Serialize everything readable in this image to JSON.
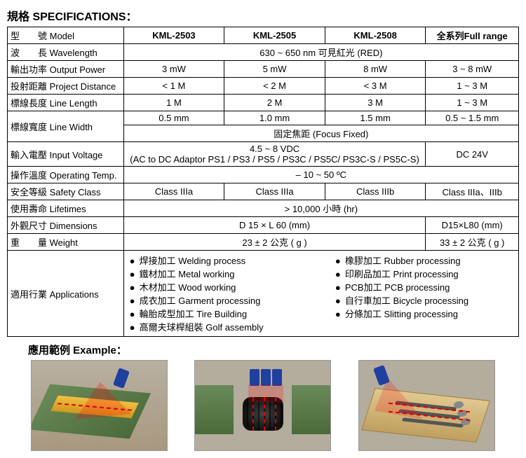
{
  "titles": {
    "spec": "規格 SPECIFICATIONS：",
    "example": "應用範例 Example："
  },
  "headers": {
    "model": "型　　號 Model",
    "full_range": "全系列Full range"
  },
  "models": [
    "KML-2503",
    "KML-2505",
    "KML-2508"
  ],
  "rows": {
    "wavelength": {
      "label": "波　　長 Wavelength",
      "merged123": "630 ~ 650 nm 可見紅光 (RED)"
    },
    "output_power": {
      "label": "輸出功率 Output Power",
      "v": [
        "3 mW",
        "5 mW",
        "8 mW"
      ],
      "full": "3 ~ 8 mW"
    },
    "project_distance": {
      "label": "投射距離 Project Distance",
      "v": [
        "< 1 M",
        "< 2 M",
        "< 3 M"
      ],
      "full": "1 ~ 3 M"
    },
    "line_length": {
      "label": "標線長度 Line Length",
      "v": [
        "1 M",
        "2 M",
        "3 M"
      ],
      "full": "1 ~ 3 M"
    },
    "line_width": {
      "label": "標線寬度 Line Width",
      "v": [
        "0.5 mm",
        "1.0 mm",
        "1.5 mm"
      ],
      "full": "0.5 ~ 1.5 mm",
      "focus": "固定焦距 (Focus Fixed)"
    },
    "input_voltage": {
      "label": "輸入電壓 Input Voltage",
      "line1": "4.5 ~ 8 VDC",
      "line2": "(AC to DC Adaptor PS1 / PS3 / PS5 / PS3C / PS5C/ PS3C-S / PS5C-S)",
      "full": "DC 24V"
    },
    "operating_temp": {
      "label": "操作溫度 Operating Temp.",
      "merged_all": "– 10 ~ 50 ºC"
    },
    "safety_class": {
      "label": "安全等級 Safety Class",
      "v": [
        "Class IIIa",
        "Class IIIa",
        "Class IIIb"
      ],
      "full": "Class IIIa、IIIb"
    },
    "lifetimes": {
      "label": "使用壽命 Lifetimes",
      "merged_all": "> 10,000 小時 (hr)"
    },
    "dimensions": {
      "label": "外觀尺寸 Dimensions",
      "merged123": "D 15 × L 60 (mm)",
      "full": "D15×L80 (mm)"
    },
    "weight": {
      "label": "重　　量 Weight",
      "merged123": "23 ± 2 公克 ( g )",
      "full": "33 ± 2 公克 ( g )"
    },
    "applications": {
      "label": "適用行業 Applications",
      "col1": [
        "焊接加工  Welding process",
        "鐵材加工  Metal working",
        "木材加工  Wood working",
        "成衣加工  Garment processing",
        "輪胎成型加工  Tire Building",
        "高爾夫球桿組裝  Golf assembly"
      ],
      "col2": [
        "橡膠加工  Rubber processing",
        "印刷品加工  Print processing",
        "PCB加工  PCB processing",
        "自行車加工  Bicycle processing",
        "分條加工  Slitting processing"
      ]
    }
  }
}
